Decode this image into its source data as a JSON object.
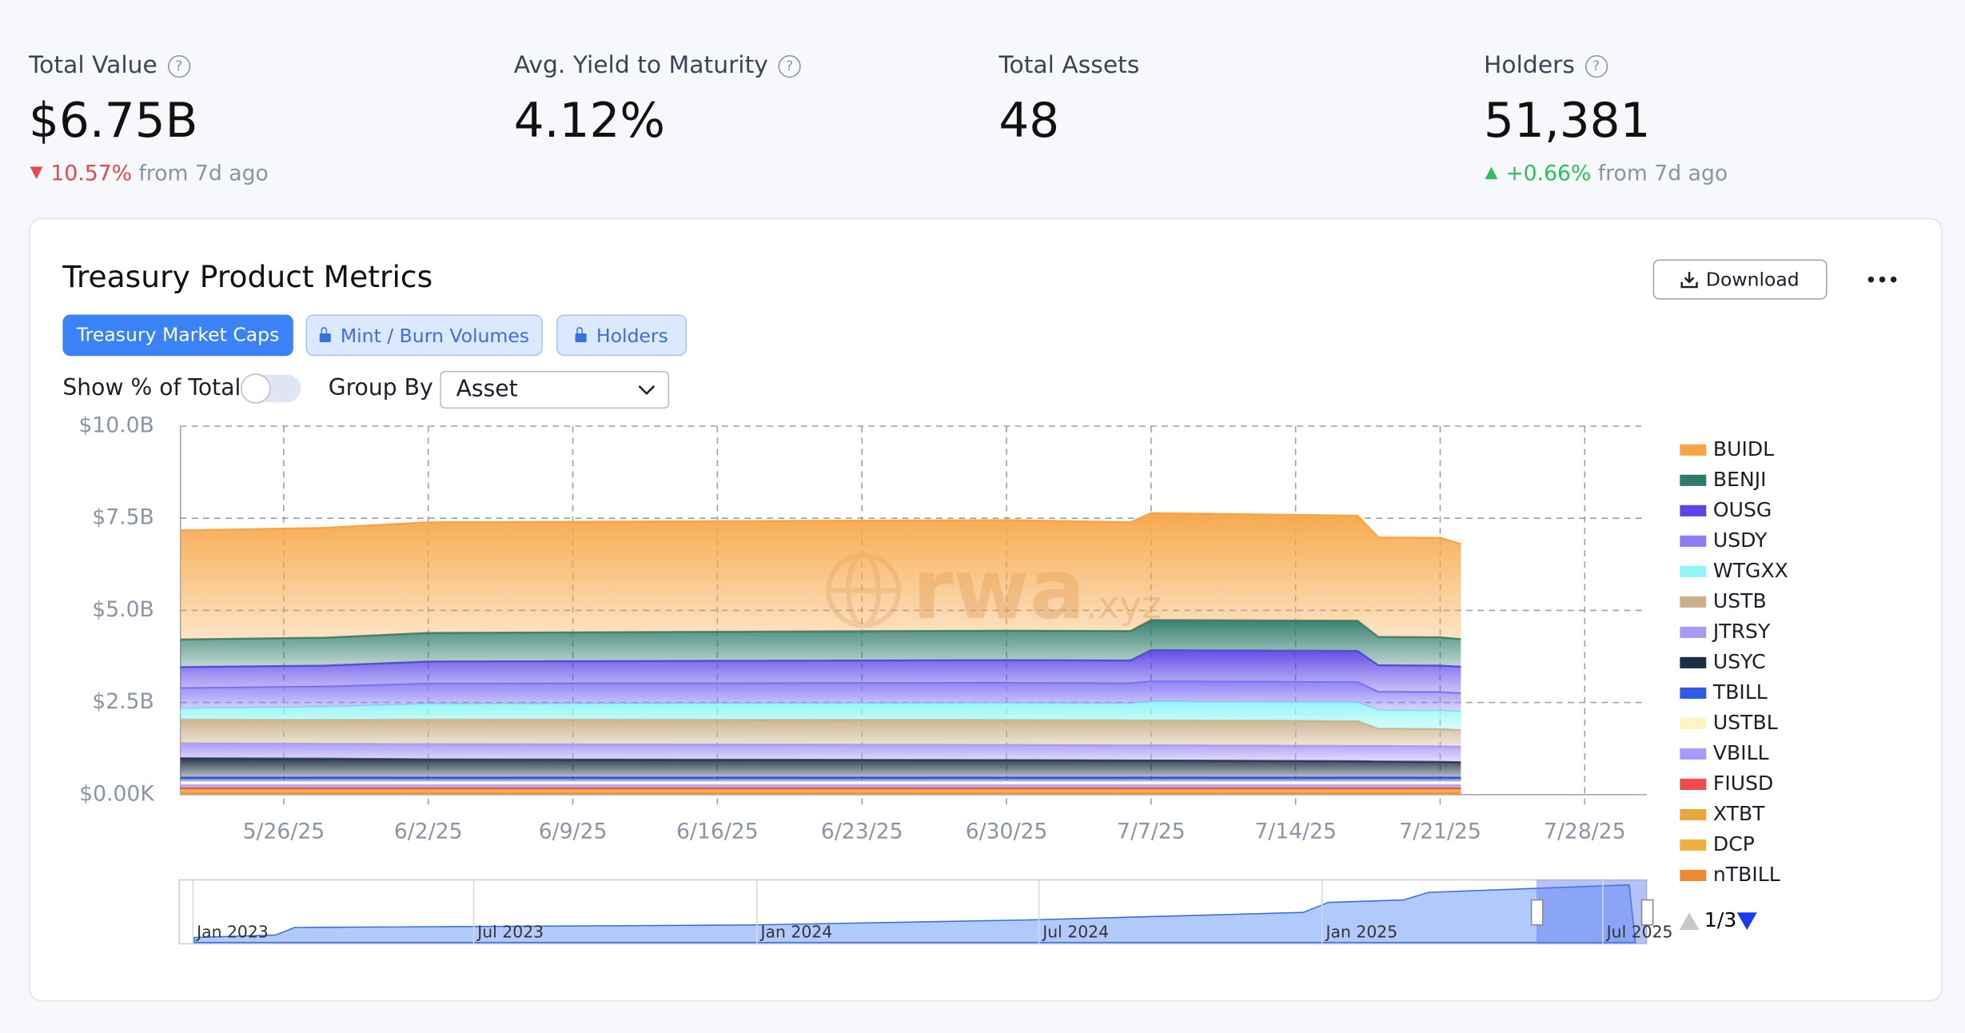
{
  "stats": [
    {
      "label": "Total Value",
      "value": "$6.75B",
      "change": "10.57%",
      "note": "from 7d ago"
    },
    {
      "label": "Avg. Yield to Maturity",
      "value": "4.12%"
    },
    {
      "label": "Total Assets",
      "value": "48"
    },
    {
      "label": "Holders",
      "value": "51,381",
      "change": "+0.66%",
      "note": "from 7d ago"
    }
  ],
  "card": {
    "title": "Treasury Product Metrics",
    "download": "Download",
    "tabs": [
      "Treasury Market Caps",
      "Mint / Burn Volumes",
      "Holders"
    ],
    "toggle_label": "Show % of Total",
    "group_label": "Group By",
    "group_value": "Asset"
  },
  "navigator": {
    "labels": [
      "Jan 2023",
      "Jul 2023",
      "Jan 2024",
      "Jul 2024",
      "Jan 2025",
      "Jul 2025"
    ],
    "page": "1/3"
  },
  "chart_data": {
    "type": "stacked_area",
    "watermark": "rwa",
    "watermark_suffix": ".xyz",
    "x": [
      "2025-05-21",
      "2025-05-28",
      "2025-06-02",
      "2025-06-30",
      "2025-07-06",
      "2025-07-07",
      "2025-07-17",
      "2025-07-18",
      "2025-07-21",
      "2025-07-22"
    ],
    "xlim": [
      "2025-05-21",
      "2025-07-31"
    ],
    "xticks": [
      {
        "value": "2025-05-26",
        "label": "5/26/25"
      },
      {
        "value": "2025-06-02",
        "label": "6/2/25"
      },
      {
        "value": "2025-06-09",
        "label": "6/9/25"
      },
      {
        "value": "2025-06-16",
        "label": "6/16/25"
      },
      {
        "value": "2025-06-23",
        "label": "6/23/25"
      },
      {
        "value": "2025-06-30",
        "label": "6/30/25"
      },
      {
        "value": "2025-07-07",
        "label": "7/7/25"
      },
      {
        "value": "2025-07-14",
        "label": "7/14/25"
      },
      {
        "value": "2025-07-21",
        "label": "7/21/25"
      },
      {
        "value": "2025-07-28",
        "label": "7/28/25"
      }
    ],
    "ylim": [
      0,
      10
    ],
    "yticks": [
      {
        "value": 0,
        "label": "$0.00K"
      },
      {
        "value": 2.5,
        "label": "$2.5B"
      },
      {
        "value": 5,
        "label": "$5.0B"
      },
      {
        "value": 7.5,
        "label": "$7.5B"
      },
      {
        "value": 10,
        "label": "$10.0B"
      }
    ],
    "grid": true,
    "legend": "right",
    "series": [
      {
        "name": "BUIDL",
        "color": "#f6a545",
        "values": [
          2.96,
          2.98,
          3.0,
          3.0,
          2.95,
          2.9,
          2.85,
          2.7,
          2.7,
          2.58
        ]
      },
      {
        "name": "BENJI",
        "color": "#2f7a6a",
        "values": [
          0.75,
          0.76,
          0.78,
          0.8,
          0.8,
          0.82,
          0.82,
          0.77,
          0.77,
          0.75
        ]
      },
      {
        "name": "OUSG",
        "color": "#5b45e6",
        "values": [
          0.57,
          0.57,
          0.6,
          0.62,
          0.62,
          0.85,
          0.85,
          0.72,
          0.72,
          0.72
        ]
      },
      {
        "name": "USDY",
        "color": "#8b7df5",
        "values": [
          0.55,
          0.55,
          0.55,
          0.55,
          0.55,
          0.55,
          0.55,
          0.5,
          0.5,
          0.5
        ]
      },
      {
        "name": "WTGXX",
        "color": "#8ff5f5",
        "values": [
          0.3,
          0.35,
          0.42,
          0.45,
          0.45,
          0.5,
          0.5,
          0.5,
          0.5,
          0.5
        ]
      },
      {
        "name": "USTB",
        "color": "#c9b08a",
        "values": [
          0.65,
          0.65,
          0.67,
          0.68,
          0.68,
          0.68,
          0.68,
          0.47,
          0.47,
          0.45
        ]
      },
      {
        "name": "JTRSY",
        "color": "#a99af5",
        "values": [
          0.4,
          0.4,
          0.41,
          0.41,
          0.41,
          0.41,
          0.41,
          0.42,
          0.42,
          0.42
        ]
      },
      {
        "name": "USYC",
        "color": "#1e2f45",
        "values": [
          0.53,
          0.52,
          0.5,
          0.48,
          0.47,
          0.47,
          0.45,
          0.44,
          0.43,
          0.42
        ]
      },
      {
        "name": "TBILL",
        "color": "#2f5be8",
        "values": [
          0.1,
          0.1,
          0.1,
          0.1,
          0.1,
          0.1,
          0.1,
          0.1,
          0.1,
          0.1
        ]
      },
      {
        "name": "USTBL",
        "color": "#fff4c2",
        "values": [
          0.1,
          0.1,
          0.1,
          0.1,
          0.1,
          0.1,
          0.1,
          0.1,
          0.1,
          0.1
        ]
      },
      {
        "name": "VBILL",
        "color": "#a49cf8",
        "values": [
          0.08,
          0.08,
          0.08,
          0.08,
          0.08,
          0.08,
          0.08,
          0.08,
          0.08,
          0.08
        ]
      },
      {
        "name": "FIUSD",
        "color": "#f04a4a",
        "values": [
          0.04,
          0.04,
          0.04,
          0.04,
          0.04,
          0.04,
          0.04,
          0.04,
          0.04,
          0.04
        ]
      },
      {
        "name": "XTBT",
        "color": "#e8a83a",
        "values": [
          0.06,
          0.06,
          0.06,
          0.06,
          0.06,
          0.06,
          0.06,
          0.06,
          0.06,
          0.06
        ]
      },
      {
        "name": "DCP",
        "color": "#f0b040",
        "values": [
          0.03,
          0.03,
          0.03,
          0.03,
          0.03,
          0.03,
          0.03,
          0.03,
          0.03,
          0.03
        ]
      },
      {
        "name": "nTBILL",
        "color": "#f08a30",
        "values": [
          0.05,
          0.05,
          0.05,
          0.05,
          0.05,
          0.05,
          0.05,
          0.05,
          0.05,
          0.05
        ]
      }
    ]
  }
}
